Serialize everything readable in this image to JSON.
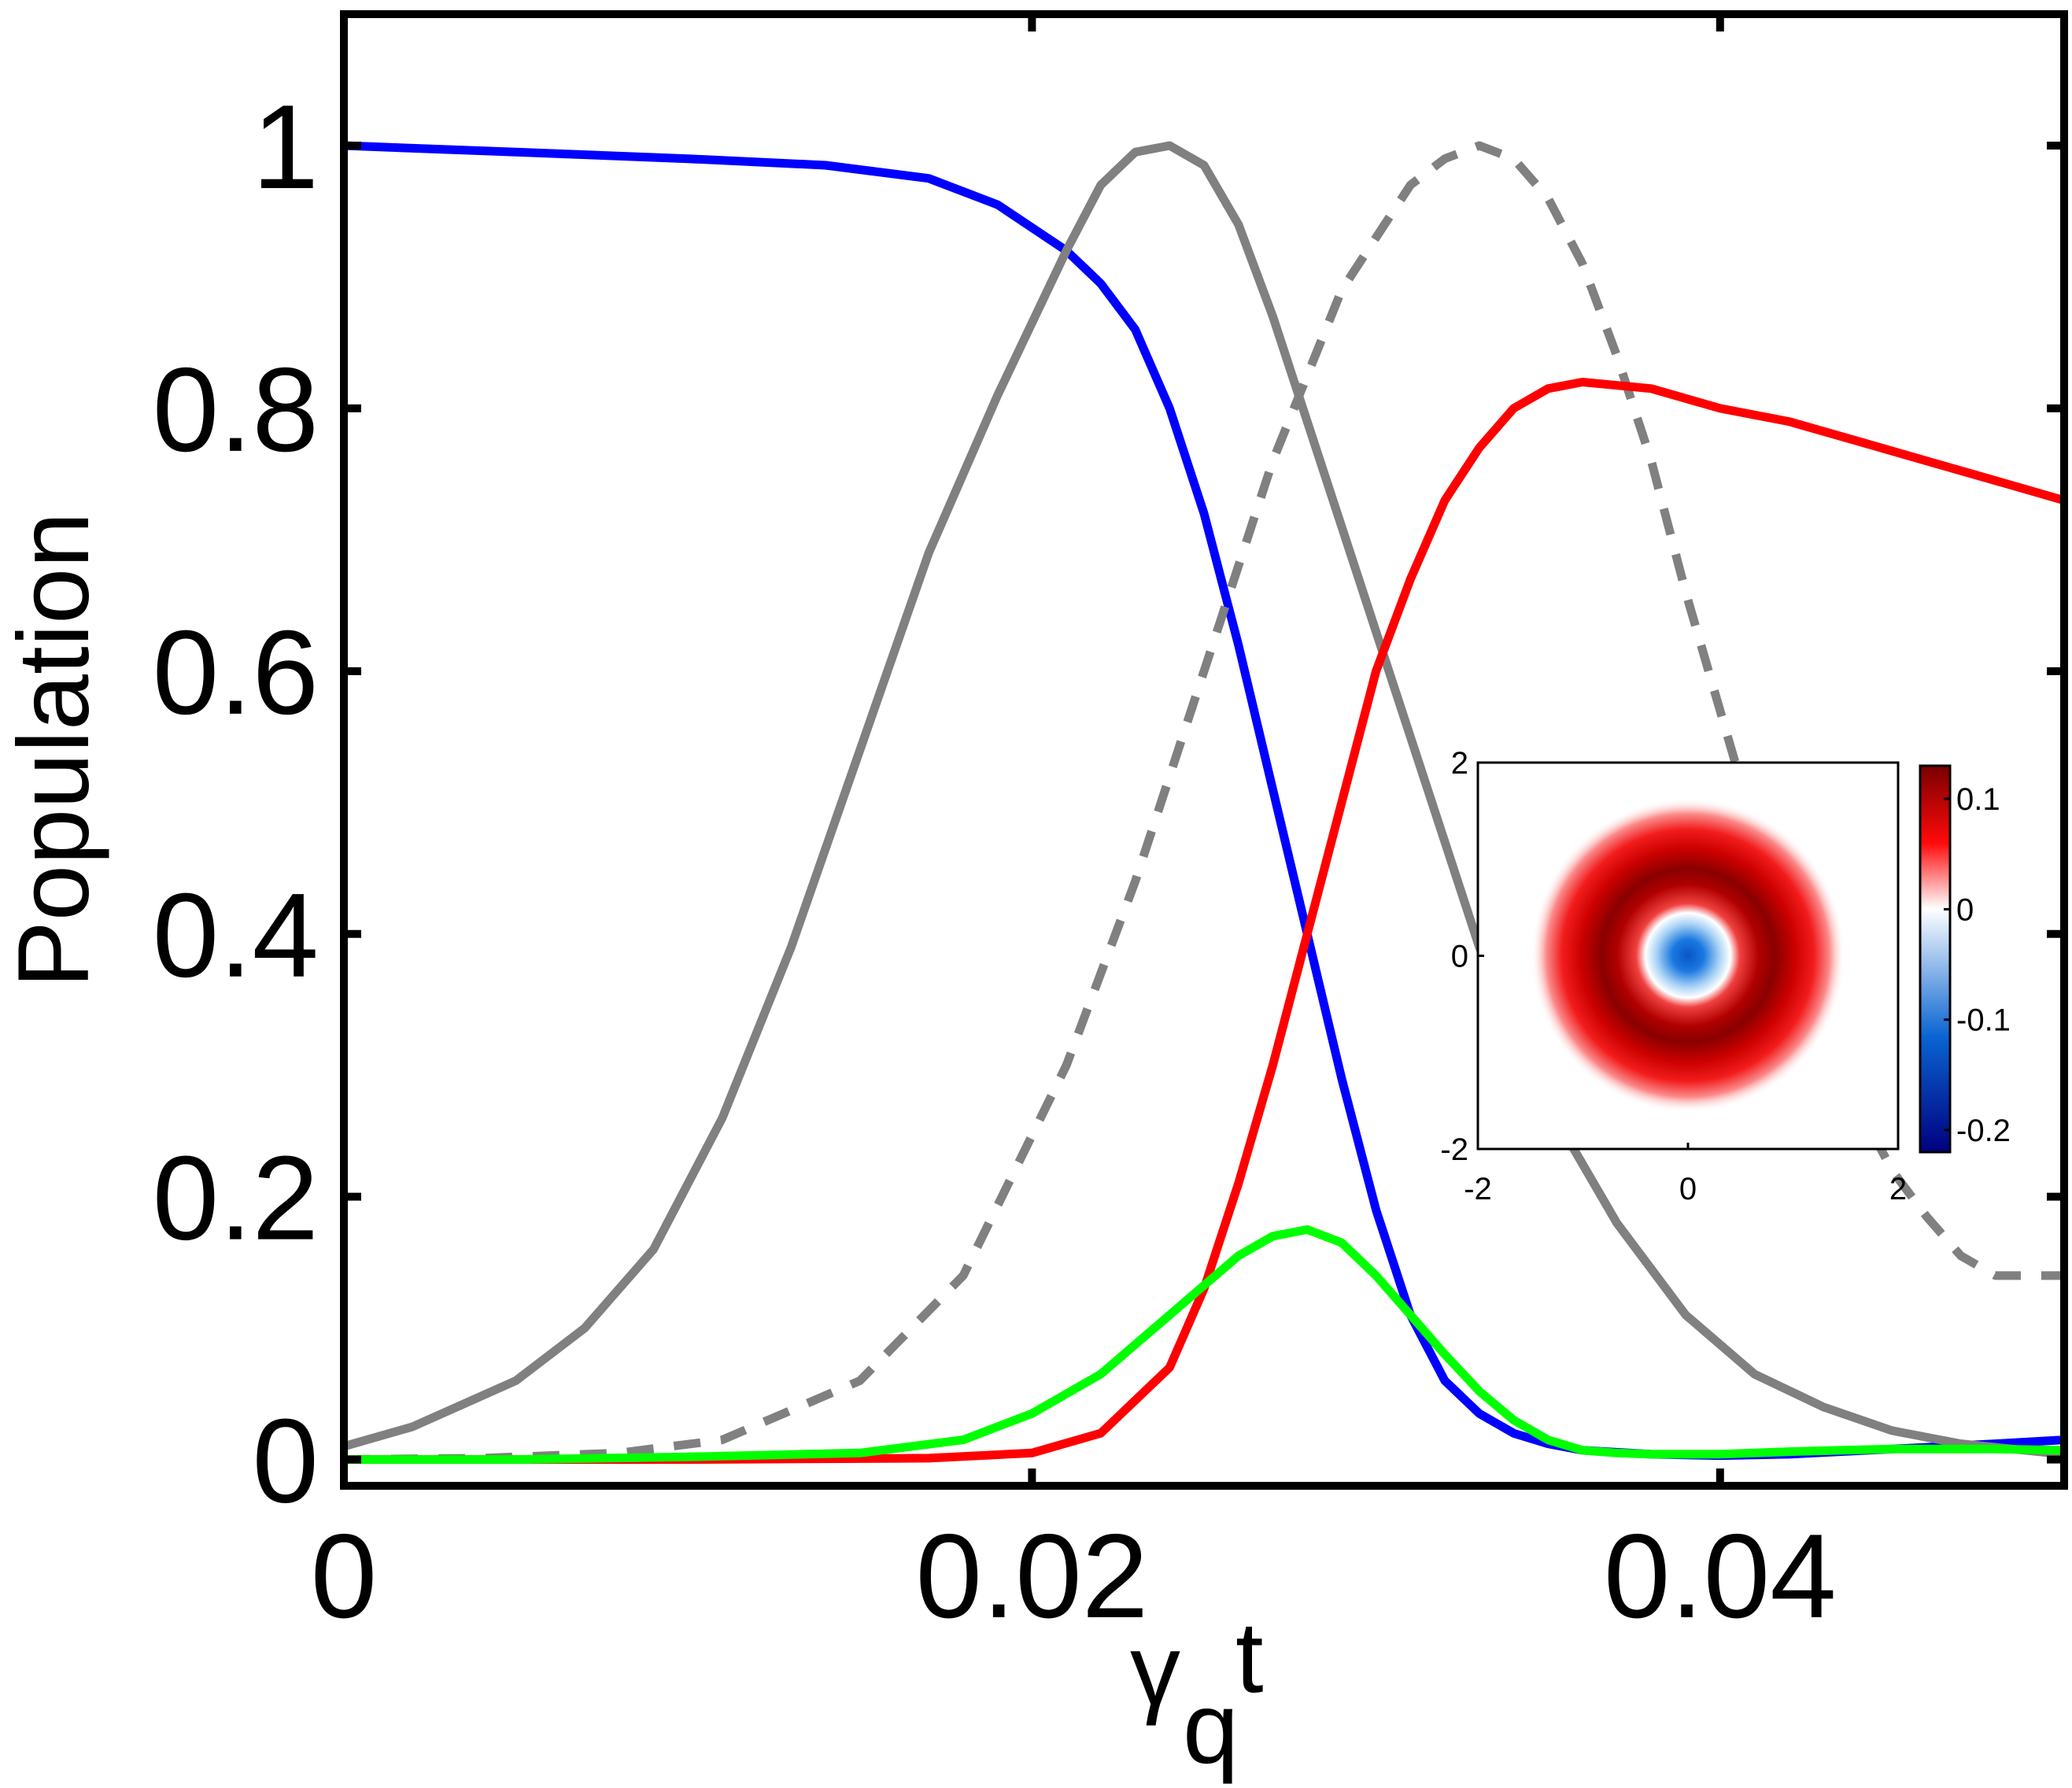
{
  "chart_data": [
    {
      "type": "line",
      "title": "",
      "xlabel": "γ_q t",
      "xlabel_main": "γ",
      "xlabel_sub": "q",
      "xlabel_tail": "t",
      "ylabel": "Population",
      "xlim": [
        0,
        0.05
      ],
      "ylim": [
        -0.02,
        1.1
      ],
      "xticks": [
        0,
        0.02,
        0.04
      ],
      "xtick_labels": [
        "0",
        "0.02",
        "0.04"
      ],
      "yticks": [
        0,
        0.2,
        0.4,
        0.6,
        0.8,
        1
      ],
      "ytick_labels": [
        "0",
        "0.2",
        "0.4",
        "0.6",
        "0.8",
        "1"
      ],
      "grid": false,
      "legend": "none",
      "series": [
        {
          "color": "#0000ff",
          "style": "solid",
          "x": [
            0,
            0.005,
            0.01,
            0.014,
            0.017,
            0.019,
            0.021,
            0.022,
            0.023,
            0.024,
            0.025,
            0.026,
            0.027,
            0.028,
            0.029,
            0.03,
            0.031,
            0.032,
            0.033,
            0.034,
            0.035,
            0.036,
            0.038,
            0.04,
            0.042,
            0.045,
            0.048,
            0.05
          ],
          "y": [
            1.0,
            0.995,
            0.99,
            0.985,
            0.975,
            0.955,
            0.92,
            0.895,
            0.86,
            0.8,
            0.72,
            0.62,
            0.51,
            0.4,
            0.29,
            0.19,
            0.11,
            0.06,
            0.035,
            0.02,
            0.012,
            0.007,
            0.004,
            0.003,
            0.004,
            0.008,
            0.012,
            0.015
          ]
        },
        {
          "color": "#808080",
          "style": "solid",
          "x": [
            0,
            0.002,
            0.005,
            0.007,
            0.009,
            0.011,
            0.013,
            0.015,
            0.017,
            0.019,
            0.021,
            0.022,
            0.023,
            0.024,
            0.025,
            0.026,
            0.027,
            0.029,
            0.031,
            0.033,
            0.035,
            0.037,
            0.039,
            0.041,
            0.043,
            0.045,
            0.047,
            0.05
          ],
          "y": [
            0.01,
            0.025,
            0.06,
            0.1,
            0.16,
            0.26,
            0.39,
            0.54,
            0.69,
            0.81,
            0.92,
            0.97,
            0.995,
            1.0,
            0.985,
            0.94,
            0.87,
            0.71,
            0.55,
            0.39,
            0.27,
            0.18,
            0.11,
            0.065,
            0.04,
            0.022,
            0.012,
            0.004
          ]
        },
        {
          "color": "#808080",
          "style": "dashed",
          "x": [
            0,
            0.004,
            0.008,
            0.011,
            0.015,
            0.018,
            0.021,
            0.023,
            0.025,
            0.027,
            0.029,
            0.031,
            0.032,
            0.033,
            0.034,
            0.035,
            0.036,
            0.037,
            0.038,
            0.039,
            0.04,
            0.041,
            0.042,
            0.043,
            0.044,
            0.045,
            0.046,
            0.047,
            0.048,
            0.049,
            0.05
          ],
          "y": [
            0.0,
            0.001,
            0.005,
            0.015,
            0.06,
            0.14,
            0.3,
            0.44,
            0.6,
            0.76,
            0.89,
            0.97,
            0.99,
            1.0,
            0.99,
            0.96,
            0.91,
            0.84,
            0.76,
            0.66,
            0.57,
            0.48,
            0.4,
            0.33,
            0.27,
            0.22,
            0.185,
            0.155,
            0.14,
            0.14,
            0.14
          ]
        },
        {
          "color": "#ff0000",
          "style": "solid",
          "x": [
            0,
            0.01,
            0.017,
            0.02,
            0.022,
            0.024,
            0.025,
            0.026,
            0.027,
            0.028,
            0.029,
            0.03,
            0.031,
            0.032,
            0.033,
            0.034,
            0.035,
            0.036,
            0.038,
            0.04,
            0.042,
            0.044,
            0.046,
            0.048,
            0.05
          ],
          "y": [
            0.0,
            0.0,
            0.001,
            0.005,
            0.02,
            0.07,
            0.13,
            0.21,
            0.3,
            0.4,
            0.5,
            0.6,
            0.67,
            0.73,
            0.77,
            0.8,
            0.815,
            0.82,
            0.815,
            0.8,
            0.79,
            0.775,
            0.76,
            0.745,
            0.73
          ]
        },
        {
          "color": "#00ff00",
          "style": "solid",
          "x": [
            0,
            0.005,
            0.01,
            0.015,
            0.018,
            0.02,
            0.022,
            0.024,
            0.026,
            0.027,
            0.028,
            0.029,
            0.03,
            0.031,
            0.032,
            0.033,
            0.034,
            0.035,
            0.036,
            0.037,
            0.038,
            0.04,
            0.042,
            0.045,
            0.048,
            0.05
          ],
          "y": [
            0.0,
            0.0,
            0.002,
            0.005,
            0.015,
            0.035,
            0.065,
            0.11,
            0.155,
            0.17,
            0.175,
            0.165,
            0.14,
            0.11,
            0.08,
            0.052,
            0.03,
            0.015,
            0.007,
            0.005,
            0.004,
            0.004,
            0.006,
            0.008,
            0.008,
            0.007
          ]
        }
      ]
    },
    {
      "type": "heatmap",
      "title": "",
      "xlim": [
        -2,
        2
      ],
      "ylim": [
        -2,
        2
      ],
      "xticks": [
        -2,
        0,
        2
      ],
      "xtick_labels": [
        "-2",
        "0",
        "2"
      ],
      "yticks": [
        -2,
        0,
        2
      ],
      "ytick_labels": [
        "-2",
        "0",
        "2"
      ],
      "center_value": -0.2,
      "ring_value": 0.12,
      "colorbar": {
        "range": [
          -0.22,
          0.13
        ],
        "ticks": [
          0.1,
          0,
          -0.1,
          -0.2
        ],
        "tick_labels": [
          "0.1",
          "0",
          "-0.1",
          "-0.2"
        ],
        "colors": [
          "#00007f",
          "#0a64d2",
          "#ffffff",
          "#ff0a0a",
          "#7a0000"
        ]
      }
    }
  ]
}
